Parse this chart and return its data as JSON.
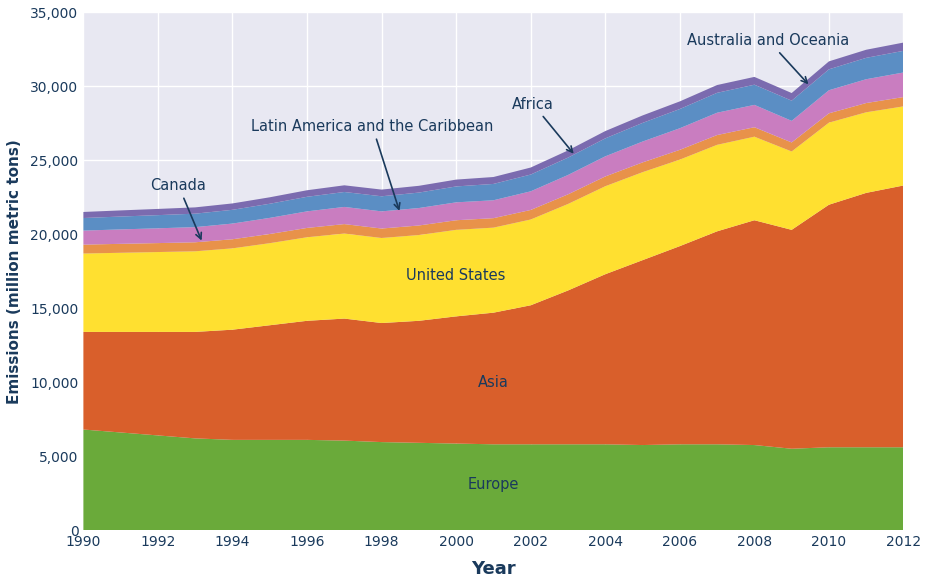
{
  "years": [
    1990,
    1991,
    1992,
    1993,
    1994,
    1995,
    1996,
    1997,
    1998,
    1999,
    2000,
    2001,
    2002,
    2003,
    2004,
    2005,
    2006,
    2007,
    2008,
    2009,
    2010,
    2011,
    2012
  ],
  "Europe": [
    6800,
    6600,
    6400,
    6200,
    6100,
    6100,
    6100,
    6050,
    5950,
    5900,
    5850,
    5800,
    5800,
    5800,
    5800,
    5750,
    5800,
    5800,
    5750,
    5500,
    5600,
    5600,
    5600
  ],
  "Asia": [
    6600,
    6800,
    7000,
    7200,
    7450,
    7750,
    8050,
    8250,
    8050,
    8250,
    8600,
    8900,
    9400,
    10400,
    11500,
    12500,
    13400,
    14400,
    15200,
    14800,
    16400,
    17200,
    17700
  ],
  "United_States": [
    5300,
    5350,
    5400,
    5450,
    5500,
    5550,
    5650,
    5750,
    5750,
    5800,
    5850,
    5750,
    5800,
    5850,
    5950,
    5950,
    5850,
    5850,
    5650,
    5300,
    5550,
    5450,
    5350
  ],
  "Canada": [
    600,
    605,
    605,
    610,
    615,
    620,
    630,
    640,
    640,
    645,
    650,
    640,
    645,
    650,
    660,
    660,
    660,
    660,
    640,
    610,
    630,
    625,
    630
  ],
  "Latin_America": [
    950,
    975,
    1000,
    1025,
    1060,
    1090,
    1120,
    1160,
    1160,
    1180,
    1210,
    1210,
    1260,
    1310,
    1360,
    1410,
    1460,
    1510,
    1510,
    1460,
    1560,
    1610,
    1660
  ],
  "Africa": [
    850,
    870,
    890,
    910,
    930,
    955,
    985,
    1010,
    1020,
    1045,
    1075,
    1105,
    1135,
    1175,
    1215,
    1260,
    1300,
    1345,
    1365,
    1365,
    1415,
    1445,
    1465
  ],
  "Australia_Oceania": [
    410,
    415,
    420,
    425,
    432,
    437,
    443,
    452,
    452,
    458,
    463,
    468,
    474,
    484,
    494,
    505,
    516,
    527,
    527,
    516,
    537,
    548,
    559
  ],
  "colors": {
    "Europe": "#6aaa3a",
    "Asia": "#d95f2b",
    "United_States": "#ffe030",
    "Canada": "#e8924a",
    "Latin_America": "#c97dc0",
    "Africa": "#5b8ec4",
    "Australia_Oceania": "#7b6baf"
  },
  "background_color": "#e8e8f2",
  "xlabel": "Year",
  "ylabel": "Emissions (million metric tons)",
  "ylim": [
    0,
    35000
  ],
  "yticks": [
    0,
    5000,
    10000,
    15000,
    20000,
    25000,
    30000,
    35000
  ],
  "xticks": [
    1990,
    1992,
    1994,
    1996,
    1998,
    2000,
    2002,
    2004,
    2006,
    2008,
    2010,
    2012
  ],
  "annotation_color": "#1a3a5c",
  "annotation_fontsize": 10.5
}
